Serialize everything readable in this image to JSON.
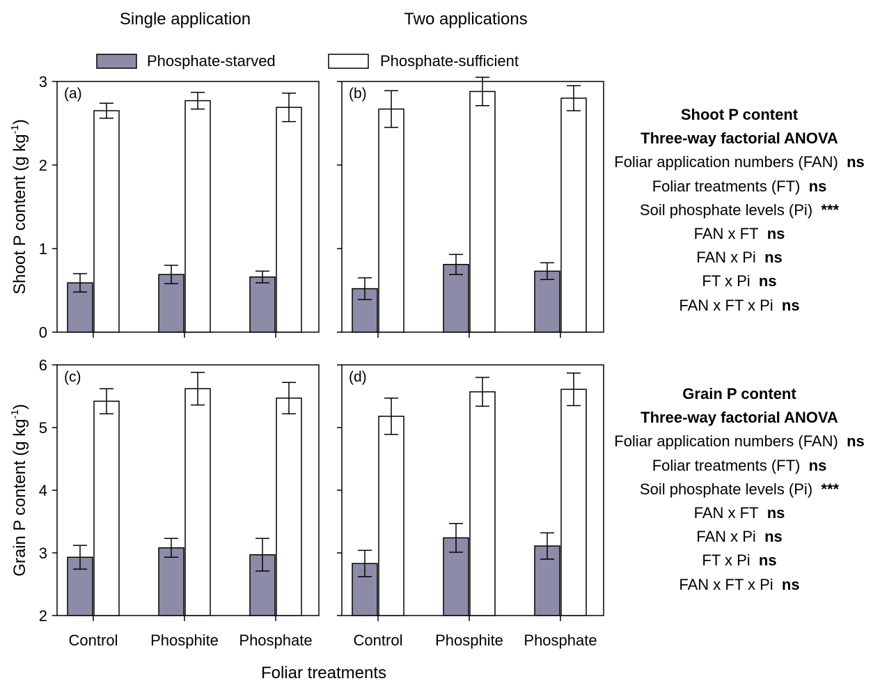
{
  "figure": {
    "col_titles": [
      "Single application",
      "Two applications"
    ],
    "xlabel": "Foliar treatments",
    "legend": [
      {
        "label": "Phosphate-starved",
        "color": "#8c8ca8"
      },
      {
        "label": "Phosphate-sufficient",
        "color": "#ffffff"
      }
    ]
  },
  "chart_data": [
    {
      "type": "bar",
      "panel": "(a)",
      "categories": [
        "Control",
        "Phosphite",
        "Phosphate"
      ],
      "ylabel": "Shoot P content (g kg-1)",
      "ylim": [
        0,
        3
      ],
      "yticks": [
        0,
        1,
        2,
        3
      ],
      "series": [
        {
          "name": "Phosphate-starved",
          "values": [
            0.59,
            0.69,
            0.66
          ],
          "errors": [
            0.11,
            0.11,
            0.07
          ]
        },
        {
          "name": "Phosphate-sufficient",
          "values": [
            2.65,
            2.77,
            2.69
          ],
          "errors": [
            0.09,
            0.1,
            0.17
          ]
        }
      ]
    },
    {
      "type": "bar",
      "panel": "(b)",
      "categories": [
        "Control",
        "Phosphite",
        "Phosphate"
      ],
      "ylabel": "",
      "ylim": [
        0,
        3
      ],
      "yticks": [
        0,
        1,
        2,
        3
      ],
      "series": [
        {
          "name": "Phosphate-starved",
          "values": [
            0.52,
            0.81,
            0.73
          ],
          "errors": [
            0.13,
            0.12,
            0.1
          ]
        },
        {
          "name": "Phosphate-sufficient",
          "values": [
            2.67,
            2.88,
            2.8
          ],
          "errors": [
            0.22,
            0.17,
            0.15
          ]
        }
      ]
    },
    {
      "type": "bar",
      "panel": "(c)",
      "categories": [
        "Control",
        "Phosphite",
        "Phosphate"
      ],
      "ylabel": "Grain P content (g kg-1)",
      "ylim": [
        2,
        6
      ],
      "yticks": [
        2,
        3,
        4,
        5,
        6
      ],
      "series": [
        {
          "name": "Phosphate-starved",
          "values": [
            2.93,
            3.08,
            2.97
          ],
          "errors": [
            0.19,
            0.15,
            0.26
          ]
        },
        {
          "name": "Phosphate-sufficient",
          "values": [
            5.42,
            5.62,
            5.47
          ],
          "errors": [
            0.2,
            0.26,
            0.25
          ]
        }
      ]
    },
    {
      "type": "bar",
      "panel": "(d)",
      "categories": [
        "Control",
        "Phosphite",
        "Phosphate"
      ],
      "ylabel": "",
      "ylim": [
        2,
        6
      ],
      "yticks": [
        2,
        3,
        4,
        5,
        6
      ],
      "series": [
        {
          "name": "Phosphate-starved",
          "values": [
            2.83,
            3.24,
            3.11
          ],
          "errors": [
            0.21,
            0.23,
            0.21
          ]
        },
        {
          "name": "Phosphate-sufficient",
          "values": [
            5.18,
            5.57,
            5.61
          ],
          "errors": [
            0.29,
            0.23,
            0.26
          ]
        }
      ]
    }
  ],
  "anova_shoot": {
    "title": "Shoot P content",
    "subtitle": "Three-way factorial ANOVA",
    "rows": [
      {
        "label": "Foliar application numbers (FAN)",
        "sig": "ns"
      },
      {
        "label": "Foliar treatments (FT)",
        "sig": "ns"
      },
      {
        "label": "Soil phosphate levels (Pi)",
        "sig": "***"
      },
      {
        "label": "FAN x FT",
        "sig": "ns"
      },
      {
        "label": "FAN x Pi",
        "sig": "ns"
      },
      {
        "label": "FT x Pi",
        "sig": "ns"
      },
      {
        "label": "FAN x FT x Pi",
        "sig": "ns"
      }
    ]
  },
  "anova_grain": {
    "title": "Grain P content",
    "subtitle": "Three-way factorial ANOVA",
    "rows": [
      {
        "label": "Foliar application numbers (FAN)",
        "sig": "ns"
      },
      {
        "label": "Foliar treatments (FT)",
        "sig": "ns"
      },
      {
        "label": "Soil phosphate levels (Pi)",
        "sig": "***"
      },
      {
        "label": "FAN x FT",
        "sig": "ns"
      },
      {
        "label": "FAN x Pi",
        "sig": "ns"
      },
      {
        "label": "FT x Pi",
        "sig": "ns"
      },
      {
        "label": "FAN x FT x Pi",
        "sig": "ns"
      }
    ]
  }
}
